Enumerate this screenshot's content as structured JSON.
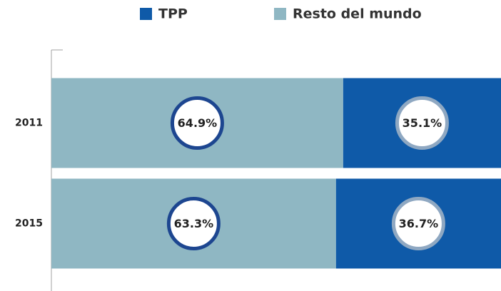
{
  "chart_data": {
    "type": "stacked-bar-horizontal",
    "categories": [
      "2011",
      "2015"
    ],
    "series": [
      {
        "name": "TPP",
        "color": "#0f5aa8",
        "values": [
          35.1,
          36.7
        ],
        "value_labels": [
          "35.1%",
          "36.7%"
        ]
      },
      {
        "name": "Resto del mundo",
        "color": "#8fb7c3",
        "values": [
          64.9,
          63.3
        ],
        "value_labels": [
          "64.9%",
          "63.3%"
        ]
      }
    ],
    "xlim": [
      0,
      100
    ]
  }
}
